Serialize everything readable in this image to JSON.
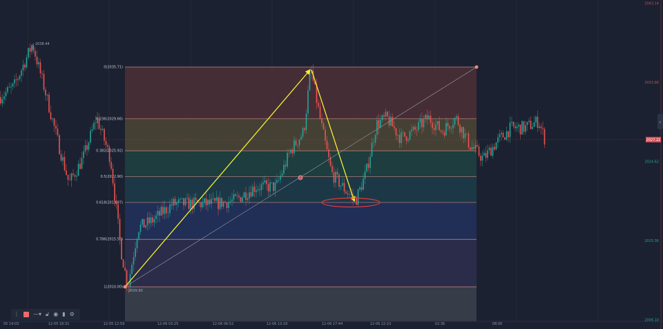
{
  "chart_data": {
    "type": "candlestick",
    "tool": "fibonacci-retracement",
    "fib_levels": [
      {
        "ratio": 0,
        "price": 2035.71,
        "label": "0(2035.71)",
        "fill": "#4a2f37"
      },
      {
        "ratio": 0.236,
        "price": 2029.66,
        "label": "0.236(2029.66)",
        "fill": "#4a4435"
      },
      {
        "ratio": 0.382,
        "price": 2025.92,
        "label": "0.382(2025.92)",
        "fill": "#1f4040"
      },
      {
        "ratio": 0.5,
        "price": 2022.9,
        "label": "0.5(2022.90)",
        "fill": "#1d3b4a"
      },
      {
        "ratio": 0.618,
        "price": 2019.87,
        "label": "0.618(2019.87)",
        "fill": "#22305a"
      },
      {
        "ratio": 0.786,
        "price": 2015.56,
        "label": "0.786(2015.56)",
        "fill": "#2d2d4c"
      },
      {
        "ratio": 1,
        "price": 2010.0,
        "label": "1(2010.00)",
        "fill": "#3a3f4b"
      }
    ],
    "high_label": "2038.44",
    "low_label": "2009.80",
    "y_axis": {
      "range": [
        2006.1,
        2043.14
      ],
      "ticks": [
        {
          "value": 2043.14,
          "label": "2043.14",
          "color": "#c0505a"
        },
        {
          "value": 2033.88,
          "label": "2033.88",
          "color": "#c0505a"
        },
        {
          "value": 2024.62,
          "label": "2024.62",
          "color": "#26a69a"
        },
        {
          "value": 2015.36,
          "label": "2015.36",
          "color": "#26a69a"
        },
        {
          "value": 2006.1,
          "label": "2006.10",
          "color": "#26a69a"
        }
      ]
    },
    "current_price": {
      "value": 2027.22,
      "label": "2027.22",
      "color": "#e04a55"
    },
    "x_axis": {
      "ticks": [
        "05 14:03",
        "12-05 18:31",
        "12-05 12:59",
        "12-06 03:25",
        "12-06 06:52",
        "12-06 13:18",
        "12-06 17:44",
        "12-06 22:10",
        "02:36",
        "08:00"
      ]
    },
    "price_path": [
      2032.2,
      2033.4,
      2037.1,
      2038.4,
      2033.0,
      2026.6,
      2022.1,
      2025.0,
      2029.8,
      2025.0,
      2014.4,
      2010.0,
      2016.9,
      2017.7,
      2019.7,
      2019.7,
      2019.7,
      2020.1,
      2021.7,
      2021.7,
      2025.8,
      2028.2,
      2035.5,
      2029.0,
      2023.3,
      2021.3,
      2020.1,
      2023.3,
      2029.0,
      2029.8,
      2027.4,
      2028.2,
      2029.8,
      2028.2,
      2029.8,
      2026.6,
      2025.0,
      2027.0,
      2028.6,
      2028.6,
      2029.4,
      2027.0
    ],
    "annotations": {
      "arrow_color": "#f5f033",
      "ellipse_color": "#e03a3a",
      "trendline_color": "#9aa0ad"
    },
    "colors": {
      "up": "#26a69a",
      "down": "#ef5350",
      "background": "#1b2130"
    }
  },
  "toolbar": {
    "color_swatch": "#f06a6a",
    "icons": [
      "drag-handle-icon",
      "line-style-icon",
      "unlock-icon",
      "eye-icon",
      "trash-icon",
      "settings-icon"
    ]
  }
}
